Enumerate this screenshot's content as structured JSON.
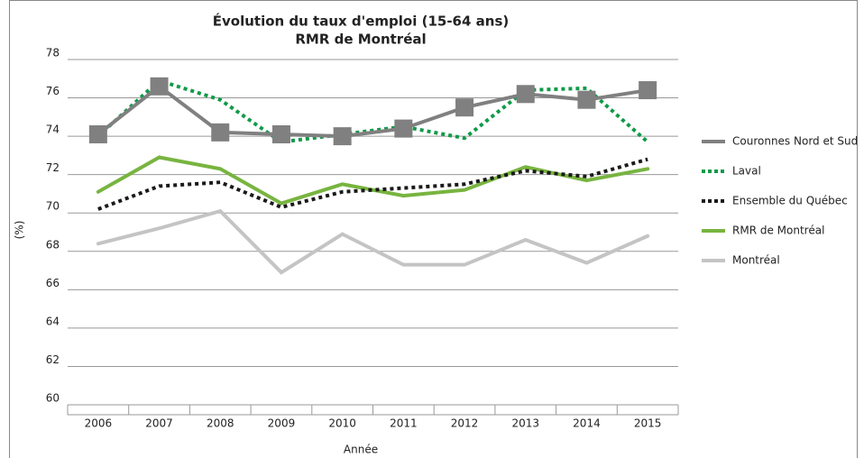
{
  "chart_data": {
    "type": "line",
    "title": [
      "Évolution du taux d'emploi (15-64 ans)",
      "RMR de Montréal"
    ],
    "x_label": "Année",
    "y_label": "(%)",
    "categories": [
      "2006",
      "2007",
      "2008",
      "2009",
      "2010",
      "2011",
      "2012",
      "2013",
      "2014",
      "2015"
    ],
    "ylim": [
      60,
      78
    ],
    "yticks": [
      60,
      62,
      64,
      66,
      68,
      70,
      72,
      74,
      76,
      78
    ],
    "grid": true,
    "legend": "right",
    "series": [
      {
        "name": "Couronnes Nord et Sud",
        "color": "#808080",
        "dash": "solid",
        "marker": "square",
        "values": [
          74.1,
          76.6,
          74.2,
          74.1,
          74.0,
          74.4,
          75.5,
          76.2,
          75.9,
          76.4
        ]
      },
      {
        "name": "Laval",
        "color": "#109a48",
        "dash": "dotted",
        "values": [
          74.0,
          76.9,
          75.9,
          73.7,
          74.1,
          74.5,
          73.9,
          76.4,
          76.5,
          73.7
        ]
      },
      {
        "name": "Ensemble du Québec",
        "color": "#1a1a1a",
        "dash": "dotted",
        "values": [
          70.2,
          71.4,
          71.6,
          70.3,
          71.1,
          71.3,
          71.5,
          72.2,
          71.9,
          72.8
        ]
      },
      {
        "name": "RMR de Montréal",
        "color": "#78b440",
        "dash": "solid",
        "values": [
          71.1,
          72.9,
          72.3,
          70.5,
          71.5,
          70.9,
          71.2,
          72.4,
          71.7,
          72.3
        ]
      },
      {
        "name": "Montréal",
        "color": "#c4c4c4",
        "dash": "solid",
        "values": [
          68.4,
          69.2,
          70.1,
          66.9,
          68.9,
          67.3,
          67.3,
          68.6,
          67.4,
          68.8
        ]
      }
    ]
  }
}
